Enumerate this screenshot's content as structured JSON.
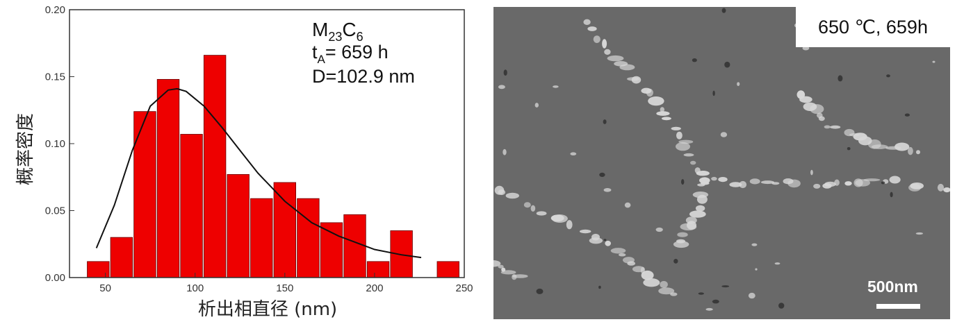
{
  "chart_data": {
    "type": "bar",
    "xlabel": "析出相直径 (nm)",
    "ylabel": "概率密度",
    "xlim": [
      30,
      250
    ],
    "ylim": [
      0,
      0.2
    ],
    "xticks": [
      50,
      100,
      150,
      200,
      250
    ],
    "yticks": [
      "0.00",
      "0.05",
      "0.10",
      "0.15",
      "0.20"
    ],
    "bin_width": 13,
    "bins": [
      {
        "x": 46,
        "value": 0.012
      },
      {
        "x": 59,
        "value": 0.03
      },
      {
        "x": 72,
        "value": 0.124
      },
      {
        "x": 85,
        "value": 0.148
      },
      {
        "x": 98,
        "value": 0.107
      },
      {
        "x": 111,
        "value": 0.166
      },
      {
        "x": 124,
        "value": 0.077
      },
      {
        "x": 137,
        "value": 0.059
      },
      {
        "x": 150,
        "value": 0.071
      },
      {
        "x": 163,
        "value": 0.059
      },
      {
        "x": 176,
        "value": 0.041
      },
      {
        "x": 189,
        "value": 0.047
      },
      {
        "x": 202,
        "value": 0.012
      },
      {
        "x": 215,
        "value": 0.035
      },
      {
        "x": 241,
        "value": 0.012
      }
    ],
    "fit_curve": {
      "type": "lognormal",
      "x": [
        45,
        55,
        65,
        75,
        85,
        90,
        95,
        105,
        115,
        125,
        135,
        150,
        165,
        180,
        200,
        215,
        226
      ],
      "y": [
        0.022,
        0.054,
        0.095,
        0.128,
        0.14,
        0.141,
        0.139,
        0.128,
        0.112,
        0.095,
        0.078,
        0.057,
        0.041,
        0.031,
        0.021,
        0.017,
        0.015
      ]
    },
    "annotations": {
      "phase": "M23C6",
      "phase_main": "M",
      "phase_sub1": "23",
      "phase_mid": "C",
      "phase_sub2": "6",
      "time_main": "t",
      "time_sub": "A",
      "time_value": "= 659 h",
      "diameter": "D=102.9 nm"
    },
    "bar_color": "#ee0000",
    "bar_stroke": "#660000",
    "curve_color": "#111111"
  },
  "sem_image": {
    "condition_label": "650 ℃, 659h",
    "scale_bar_label": "500nm",
    "background_color": "#696969",
    "particle_color": "#d8d8d8"
  }
}
